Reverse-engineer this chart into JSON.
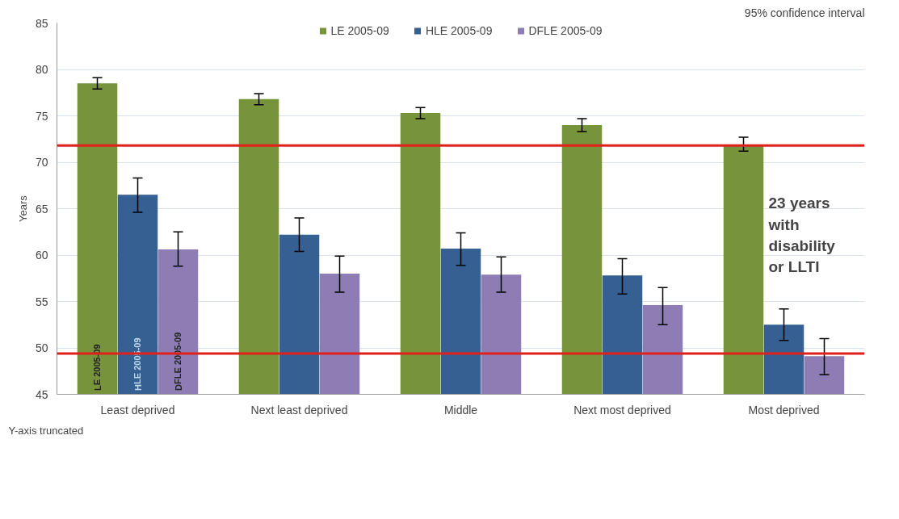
{
  "chart_data": {
    "type": "bar",
    "ylabel": "Years",
    "categories": [
      "Least deprived",
      "Next least deprived",
      "Middle",
      "Next most deprived",
      "Most deprived"
    ],
    "series": [
      {
        "name": "LE 2005-09",
        "color": "#77933c",
        "values": [
          78.5,
          76.8,
          75.3,
          74.0,
          71.9
        ],
        "errors": [
          [
            77.9,
            79.1
          ],
          [
            76.2,
            77.4
          ],
          [
            74.7,
            75.9
          ],
          [
            73.3,
            74.7
          ],
          [
            71.2,
            72.7
          ]
        ]
      },
      {
        "name": "HLE 2005-09",
        "color": "#366092",
        "values": [
          66.5,
          62.2,
          60.7,
          57.8,
          52.5
        ],
        "errors": [
          [
            64.6,
            68.3
          ],
          [
            60.4,
            64.0
          ],
          [
            58.9,
            62.4
          ],
          [
            55.8,
            59.6
          ],
          [
            50.8,
            54.2
          ]
        ]
      },
      {
        "name": "DFLE 2005-09",
        "color": "#8e7cb5",
        "values": [
          60.6,
          58.0,
          57.9,
          54.6,
          49.1
        ],
        "errors": [
          [
            58.8,
            62.5
          ],
          [
            56.0,
            59.9
          ],
          [
            56.0,
            59.8
          ],
          [
            52.5,
            56.5
          ],
          [
            47.1,
            51.0
          ]
        ]
      }
    ],
    "ylim": [
      45,
      85
    ],
    "yticks": [
      45,
      50,
      55,
      60,
      65,
      70,
      75,
      80,
      85
    ],
    "grid": "y",
    "legend": "top",
    "ref_lines": [
      {
        "axis": "y",
        "value": 71.8,
        "color": "#e0201b"
      },
      {
        "axis": "y",
        "value": 49.4,
        "color": "#e0201b"
      }
    ],
    "annotations": [
      "95% confidence interval",
      "23 years\nwith\ndisability\nor LLTI",
      "Y-axis truncated"
    ]
  }
}
